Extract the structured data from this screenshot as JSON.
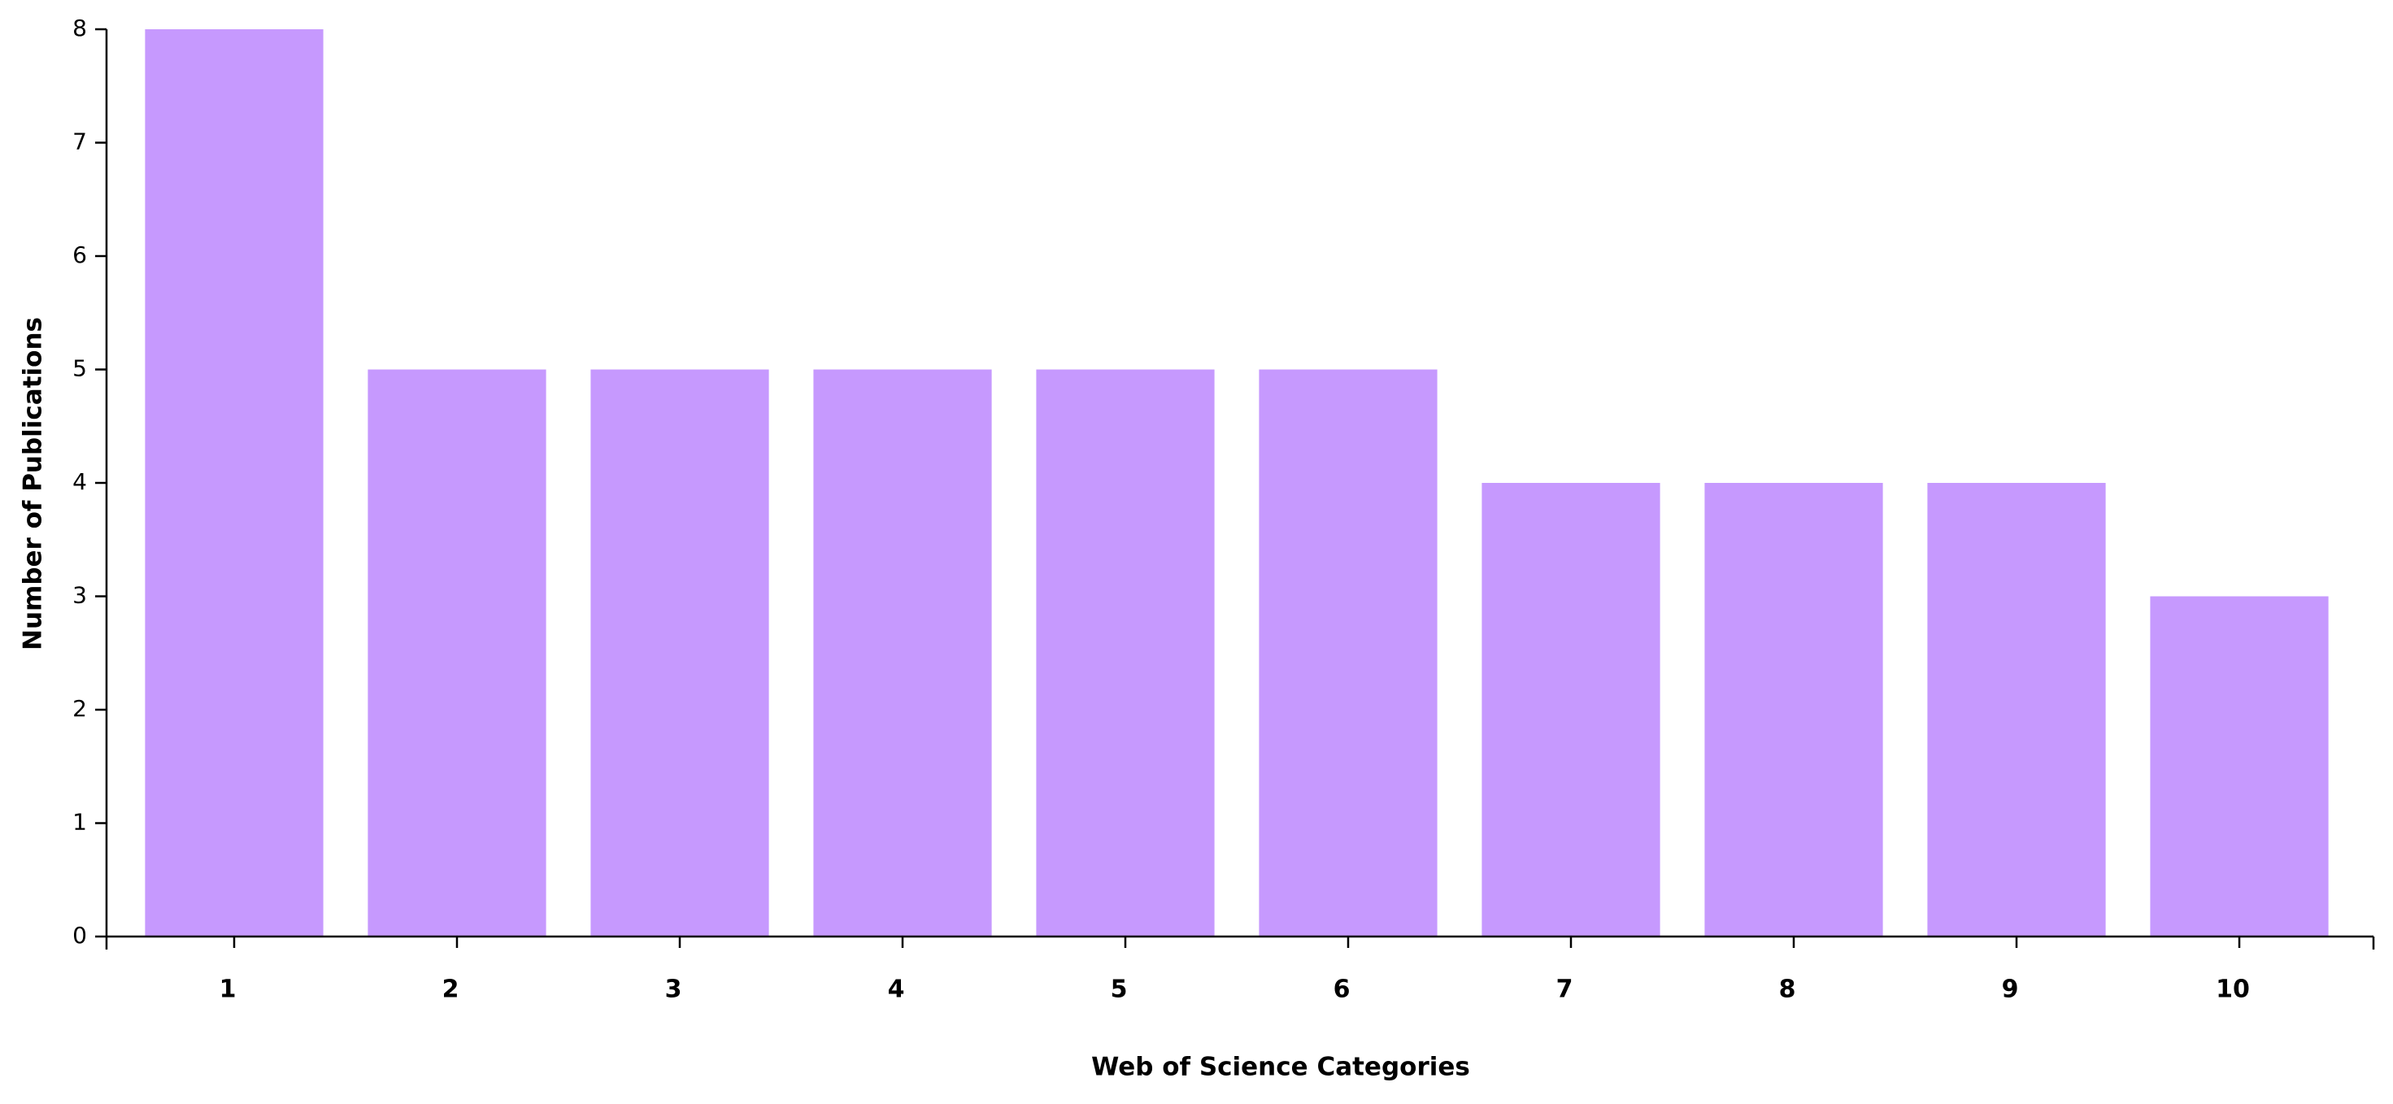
{
  "chart_data": {
    "type": "bar",
    "x_label": "Web of Science Categories",
    "y_label": "Number of Publications",
    "categories": [
      "1",
      "2",
      "3",
      "4",
      "5",
      "6",
      "7",
      "8",
      "9",
      "10"
    ],
    "values": [
      8,
      5,
      5,
      5,
      5,
      5,
      4,
      4,
      4,
      3
    ],
    "color": "#c699fe",
    "ylim": [
      0,
      8
    ],
    "yticks": [
      0,
      1,
      2,
      3,
      4,
      5,
      6,
      7,
      8
    ],
    "grid": false
  }
}
